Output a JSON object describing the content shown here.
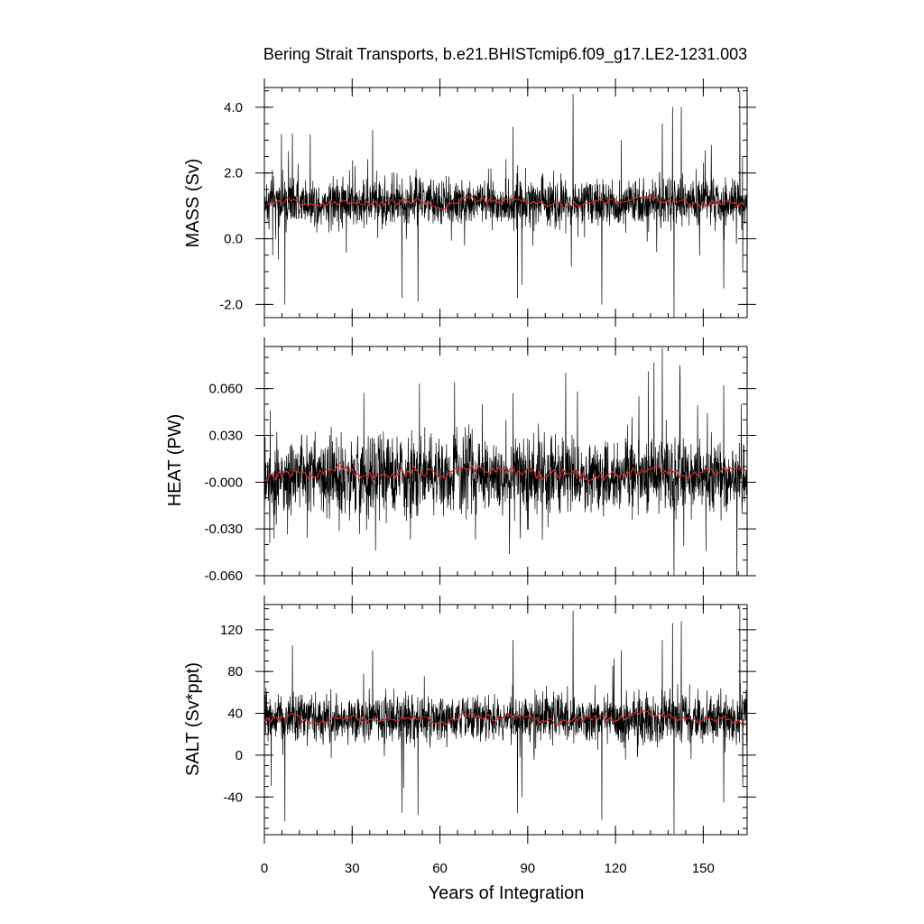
{
  "title": "Bering Strait Transports, b.e21.BHISTcmip6.f09_g17.LE2-1231.003",
  "colors": {
    "raw": "#000000",
    "smooth": "#d62a2a"
  },
  "chart_data": [
    {
      "type": "line",
      "name": "mass",
      "ylabel": "MASS (Sv)",
      "xlabel": "",
      "xlim": [
        0,
        165
      ],
      "ylim": [
        -2.4,
        4.6
      ],
      "yticks": [
        -2.0,
        0.0,
        2.0,
        4.0
      ],
      "ytick_labels": [
        "-2.0",
        "0.0",
        "2.0",
        "4.0"
      ],
      "yminor_step": 0.5,
      "xticks": [
        0,
        30,
        60,
        90,
        120,
        150
      ],
      "xtick_labels": [],
      "xminor_step": 6,
      "monthly": {
        "mean": 1.1,
        "spread": 0.55
      },
      "spikes": [
        {
          "x": 7.0,
          "y": -2.0
        },
        {
          "x": 9.6,
          "y": 3.2
        },
        {
          "x": 37.0,
          "y": 3.3
        },
        {
          "x": 47.0,
          "y": -1.8
        },
        {
          "x": 52.5,
          "y": -1.9
        },
        {
          "x": 85.0,
          "y": 3.4
        },
        {
          "x": 86.5,
          "y": -1.8
        },
        {
          "x": 105.5,
          "y": 4.4
        },
        {
          "x": 115.3,
          "y": -2.0
        },
        {
          "x": 122.0,
          "y": 3.0
        },
        {
          "x": 136.0,
          "y": 3.5
        },
        {
          "x": 139.5,
          "y": 4.0
        },
        {
          "x": 140.0,
          "y": -2.4
        },
        {
          "x": 142.5,
          "y": 4.0
        },
        {
          "x": 157.0,
          "y": -1.5
        },
        {
          "x": 162.5,
          "y": 4.5
        },
        {
          "x": 163.5,
          "y": -1.0
        },
        {
          "x": 88.0,
          "y": -1.4
        }
      ],
      "annual_mean": [
        1.05,
        1.2,
        0.95,
        1.15,
        1.05,
        1.1,
        1.15,
        0.95,
        1.25,
        1.1,
        1.2,
        1.05,
        1.0,
        1.15,
        1.1,
        1.3,
        1.15,
        1.05,
        1.1,
        1.0
      ]
    },
    {
      "type": "line",
      "name": "heat",
      "ylabel": "HEAT (PW)",
      "xlabel": "",
      "xlim": [
        0,
        165
      ],
      "ylim": [
        -0.06,
        0.087
      ],
      "yticks": [
        -0.06,
        -0.03,
        0.0,
        0.03,
        0.06
      ],
      "ytick_labels": [
        "-0.060",
        "-0.030",
        "-0.000",
        "0.030",
        "0.060"
      ],
      "yminor_step": 0.01,
      "xticks": [
        0,
        30,
        60,
        90,
        120,
        150
      ],
      "xtick_labels": [],
      "xminor_step": 6,
      "monthly": {
        "mean": 0.004,
        "spread": 0.018
      },
      "spikes": [
        {
          "x": 2.0,
          "y": 0.046
        },
        {
          "x": 34.0,
          "y": 0.057
        },
        {
          "x": 53.0,
          "y": 0.063
        },
        {
          "x": 65.0,
          "y": 0.064
        },
        {
          "x": 85.0,
          "y": 0.057
        },
        {
          "x": 87.5,
          "y": -0.036
        },
        {
          "x": 95.0,
          "y": -0.037
        },
        {
          "x": 103.0,
          "y": 0.07
        },
        {
          "x": 107.0,
          "y": 0.058
        },
        {
          "x": 128.0,
          "y": 0.055
        },
        {
          "x": 136.0,
          "y": 0.086
        },
        {
          "x": 140.0,
          "y": -0.06
        },
        {
          "x": 142.0,
          "y": 0.075
        },
        {
          "x": 157.0,
          "y": 0.062
        },
        {
          "x": 163.0,
          "y": 0.05
        }
      ],
      "annual_mean": [
        0.003,
        0.006,
        0.004,
        0.01,
        0.003,
        0.005,
        0.008,
        0.004,
        0.009,
        0.006,
        0.008,
        0.004,
        0.006,
        0.003,
        0.004,
        0.009,
        0.006,
        0.005,
        0.008,
        0.009
      ]
    },
    {
      "type": "line",
      "name": "salt",
      "ylabel": "SALT (Sv*ppt)",
      "xlabel": "Years of Integration",
      "xlim": [
        0,
        165
      ],
      "ylim": [
        -76,
        144
      ],
      "yticks": [
        -40,
        0,
        40,
        80,
        120
      ],
      "ytick_labels": [
        "-40",
        "0",
        "40",
        "80",
        "120"
      ],
      "yminor_step": 10,
      "xticks": [
        0,
        30,
        60,
        90,
        120,
        150
      ],
      "xtick_labels": [
        "0",
        "30",
        "60",
        "90",
        "120",
        "150"
      ],
      "xminor_step": 6,
      "monthly": {
        "mean": 35,
        "spread": 17
      },
      "spikes": [
        {
          "x": 7.0,
          "y": -63
        },
        {
          "x": 9.6,
          "y": 105
        },
        {
          "x": 37.0,
          "y": 100
        },
        {
          "x": 47.0,
          "y": -55
        },
        {
          "x": 52.5,
          "y": -57
        },
        {
          "x": 85.0,
          "y": 110
        },
        {
          "x": 86.5,
          "y": -55
        },
        {
          "x": 105.5,
          "y": 138
        },
        {
          "x": 115.3,
          "y": -62
        },
        {
          "x": 122.0,
          "y": 100
        },
        {
          "x": 136.0,
          "y": 110
        },
        {
          "x": 139.5,
          "y": 126
        },
        {
          "x": 140.0,
          "y": -75
        },
        {
          "x": 142.5,
          "y": 128
        },
        {
          "x": 157.0,
          "y": -45
        },
        {
          "x": 162.5,
          "y": 142
        },
        {
          "x": 163.5,
          "y": -30
        },
        {
          "x": 88.0,
          "y": -40
        }
      ],
      "annual_mean": [
        33,
        38,
        30,
        36,
        34,
        35,
        37,
        30,
        40,
        35,
        38,
        33,
        32,
        36,
        35,
        42,
        36,
        33,
        35,
        31
      ]
    }
  ]
}
